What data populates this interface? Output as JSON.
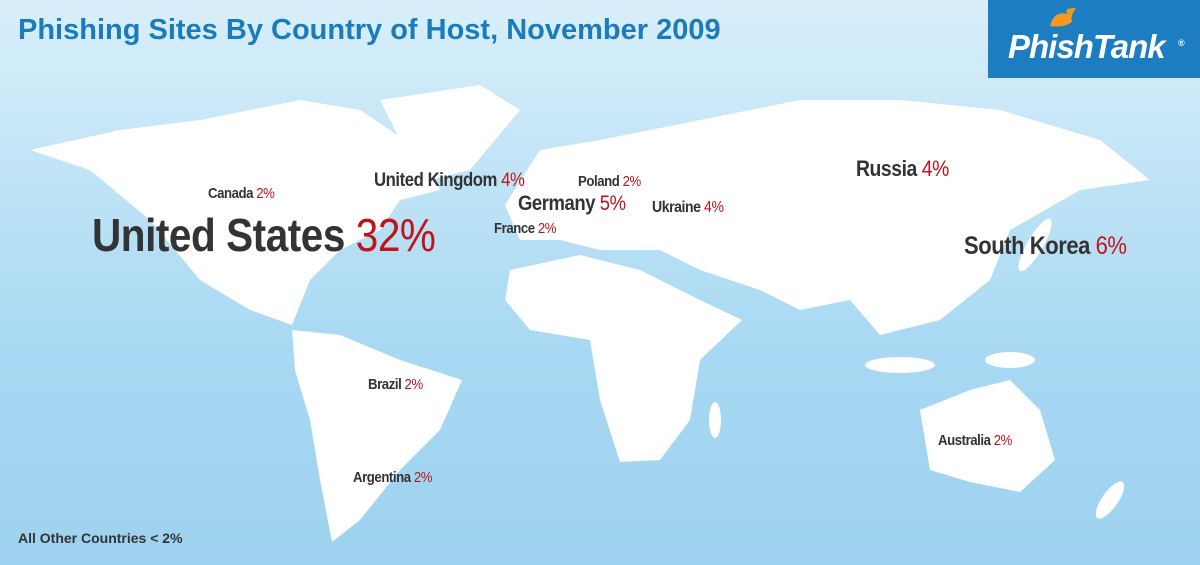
{
  "title": "Phishing Sites By Country of Host, November 2009",
  "logo": {
    "name": "PhishTank",
    "mark": "®"
  },
  "countries": [
    {
      "name": "United States",
      "share": "32%"
    },
    {
      "name": "South Korea",
      "share": "6%"
    },
    {
      "name": "Germany",
      "share": "5%"
    },
    {
      "name": "United Kingdom",
      "share": "4%"
    },
    {
      "name": "Russia",
      "share": "4%"
    },
    {
      "name": "Ukraine",
      "share": "4%"
    },
    {
      "name": "Canada",
      "share": "2%"
    },
    {
      "name": "Poland",
      "share": "2%"
    },
    {
      "name": "France",
      "share": "2%"
    },
    {
      "name": "Brazil",
      "share": "2%"
    },
    {
      "name": "Argentina",
      "share": "2%"
    },
    {
      "name": "Australia",
      "share": "2%"
    }
  ],
  "footnote": "All Other Countries < 2%"
}
